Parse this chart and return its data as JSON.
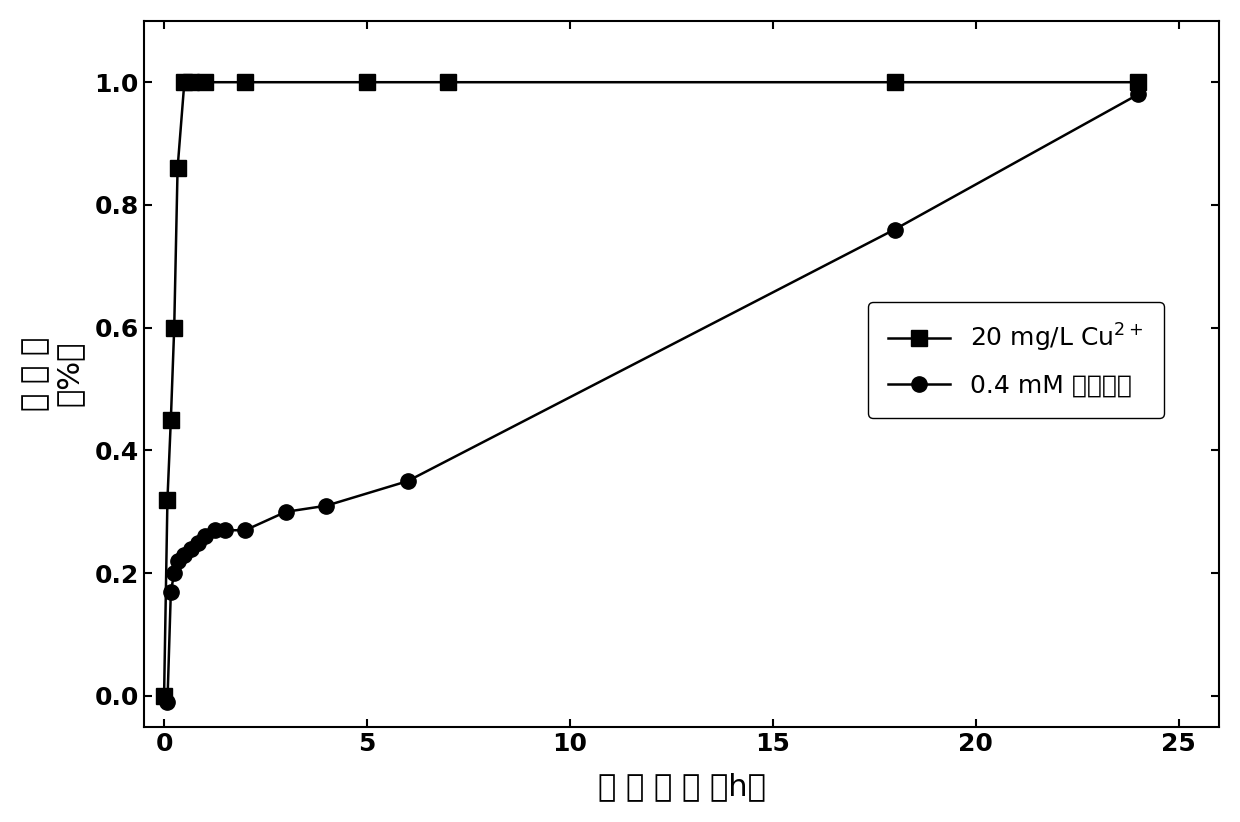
{
  "cu_x": [
    0,
    0.083,
    0.167,
    0.25,
    0.333,
    0.5,
    0.667,
    1.0,
    2.0,
    5.0,
    7.0,
    18.0,
    24.0
  ],
  "cu_y": [
    0.0,
    0.32,
    0.45,
    0.6,
    0.86,
    1.0,
    1.0,
    1.0,
    1.0,
    1.0,
    1.0,
    1.0,
    1.0
  ],
  "no3_x": [
    0,
    0.083,
    0.167,
    0.25,
    0.333,
    0.5,
    0.667,
    0.833,
    1.0,
    1.25,
    1.5,
    2.0,
    3.0,
    4.0,
    6.0,
    18.0,
    24.0
  ],
  "no3_y": [
    0.0,
    -0.01,
    0.17,
    0.2,
    0.22,
    0.23,
    0.24,
    0.25,
    0.26,
    0.27,
    0.27,
    0.27,
    0.3,
    0.31,
    0.35,
    0.76,
    0.98
  ],
  "xlabel": "反 应 时 间 （h）",
  "ylabel_lines": [
    "去 除 率",
    "（%）"
  ],
  "xlim": [
    -0.5,
    26
  ],
  "ylim": [
    -0.05,
    1.1
  ],
  "xticks": [
    0,
    5,
    10,
    15,
    20,
    25
  ],
  "yticks": [
    0.0,
    0.2,
    0.4,
    0.6,
    0.8,
    1.0
  ],
  "legend_cu": "20 mg/L Cu$^{2+}$",
  "legend_no3": "0.4 mM 硝酸盐氮",
  "line_color": "#000000",
  "marker_cu": "s",
  "marker_no3": "o",
  "markersize_cu": 11,
  "markersize_no3": 11,
  "linewidth": 1.8,
  "label_fontsize": 22,
  "tick_fontsize": 18,
  "legend_fontsize": 18
}
